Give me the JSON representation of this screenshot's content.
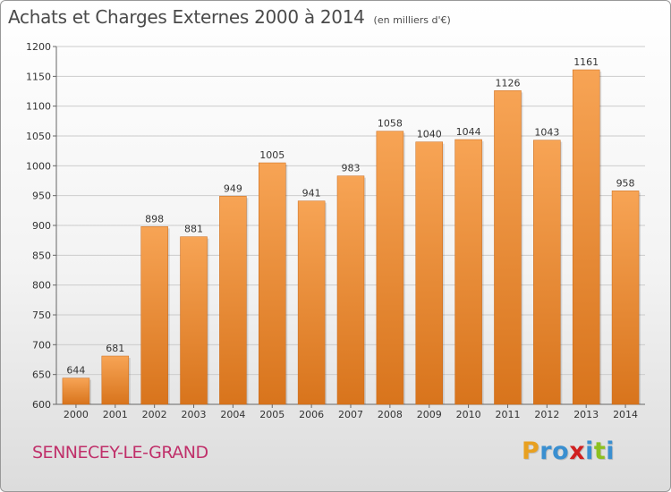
{
  "header": {
    "title": "Achats et Charges Externes 2000 à 2014",
    "subtitle": "(en milliers d'€)"
  },
  "footer": {
    "commune": "SENNECEY-LE-GRAND",
    "brand_letters": [
      "P",
      "r",
      "o",
      "x",
      "i",
      "t",
      "i"
    ],
    "brand_colors": [
      "#e8a020",
      "#3a8fd0",
      "#3a8fd0",
      "#d02020",
      "#3a8fd0",
      "#8cc020",
      "#3a8fd0"
    ]
  },
  "colors": {
    "bar_light": "#f7a455",
    "bar_dark": "#d8741c",
    "grid": "#cccccc",
    "text": "#333333",
    "commune": "#c0306a"
  },
  "chart_data": {
    "type": "bar",
    "categories": [
      "2000",
      "2001",
      "2002",
      "2003",
      "2004",
      "2005",
      "2006",
      "2007",
      "2008",
      "2009",
      "2010",
      "2011",
      "2012",
      "2013",
      "2014"
    ],
    "values": [
      644,
      681,
      898,
      881,
      949,
      1005,
      941,
      983,
      1058,
      1040,
      1044,
      1126,
      1043,
      1161,
      958
    ],
    "ylim": [
      600,
      1200
    ],
    "yticks": [
      600,
      650,
      700,
      750,
      800,
      850,
      900,
      950,
      1000,
      1050,
      1100,
      1150,
      1200
    ],
    "grid": true,
    "xlabel": "",
    "ylabel": ""
  }
}
